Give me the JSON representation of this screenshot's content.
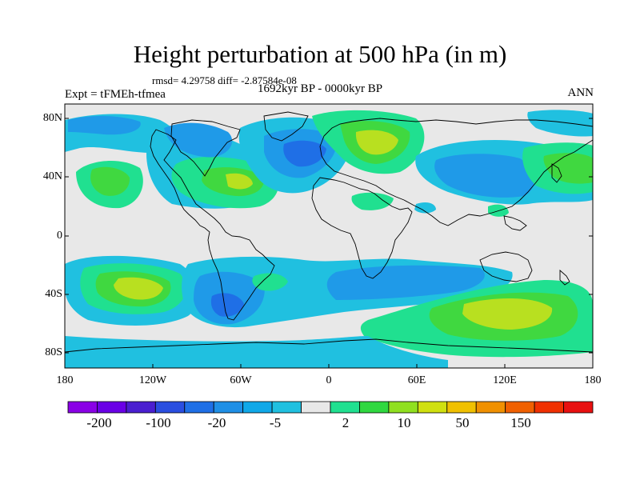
{
  "figure": {
    "title": "Height perturbation at 500 hPa (in m)",
    "stats": "rmsd= 4.29758 diff= -2.87584e-08",
    "experiment": "Expt = tFMEh-tfmea",
    "period": "1692kyr BP - 0000kyr BP",
    "season": "ANN"
  },
  "axes": {
    "lat_ticks": [
      "80N",
      "40N",
      "0",
      "40S",
      "80S"
    ],
    "lon_ticks": [
      "180",
      "120W",
      "60W",
      "0",
      "60E",
      "120E",
      "180"
    ]
  },
  "colorbar": {
    "labels": [
      "-200",
      "-100",
      "-20",
      "-5",
      "2",
      "10",
      "50",
      "150"
    ],
    "colors": [
      "#8a00e6",
      "#6a00e6",
      "#4a1fd0",
      "#2a4ee0",
      "#1f6fe6",
      "#1f8fe6",
      "#10a8e8",
      "#20c0e0",
      "#e8e8e8",
      "#20e090",
      "#30d840",
      "#90e020",
      "#d0e010",
      "#f0c000",
      "#f09000",
      "#f06000",
      "#f03000",
      "#e81010"
    ]
  },
  "colors": {
    "land_line": "#000000",
    "background": "#e8e8e8",
    "blue_dark": "#1f6fe6",
    "blue": "#1f9ae8",
    "cyan": "#20c0e0",
    "teal": "#20e090",
    "green": "#40d840",
    "lime": "#b8e020"
  }
}
